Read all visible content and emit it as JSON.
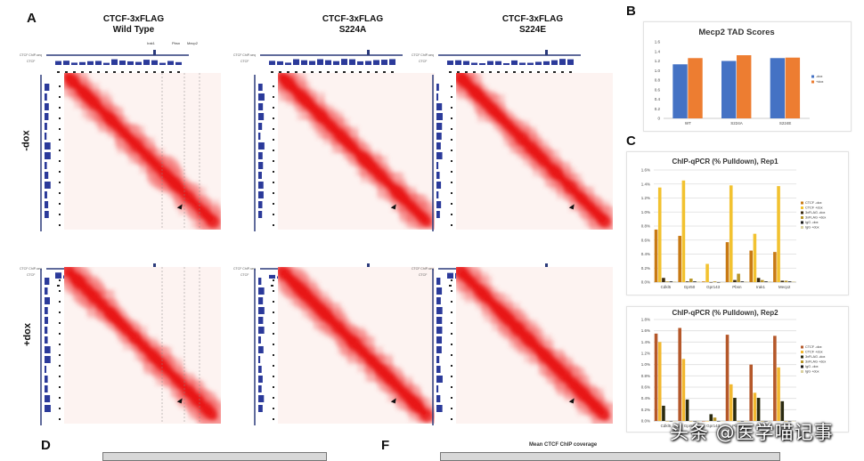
{
  "panels": {
    "A": {
      "letter": "A",
      "columns": [
        {
          "title_line1": "CTCF-3xFLAG",
          "title_line2": "Wild Type"
        },
        {
          "title_line1": "CTCF-3xFLAG",
          "title_line2": "S224A"
        },
        {
          "title_line1": "CTCF-3xFLAG",
          "title_line2": "S224E"
        }
      ],
      "rows": [
        {
          "label": "-dox"
        },
        {
          "label": "+dox"
        }
      ],
      "track_labels": {
        "top": "CTCF ChIP-seq",
        "bottom": "CTCF"
      },
      "wt_annotations": [
        "Irak1",
        "Pbsn",
        "Mecp2"
      ]
    },
    "B": {
      "letter": "B"
    },
    "C": {
      "letter": "C"
    },
    "D": {
      "letter": "D"
    },
    "F": {
      "letter": "F",
      "title": "Mean CTCF ChIP coverage"
    }
  },
  "watermark": "头条 @医学喵记事",
  "chart_data": [
    {
      "type": "bar",
      "title": "Mecp2 TAD Scores",
      "categories": [
        "WT",
        "S224A",
        "S224E"
      ],
      "series": [
        {
          "name": "-dox",
          "color": "#4472c4",
          "values": [
            1.13,
            1.2,
            1.26
          ]
        },
        {
          "name": "+dox",
          "color": "#ed7d31",
          "values": [
            1.26,
            1.32,
            1.27
          ]
        }
      ],
      "yticks": [
        "0",
        "0.2",
        "0.4",
        "0.6",
        "0.8",
        "1.0",
        "1.2",
        "1.4",
        "1.6"
      ],
      "ylim": [
        0,
        1.6
      ],
      "legend": "right",
      "xlabel": "",
      "ylabel": ""
    },
    {
      "type": "bar",
      "title": "ChIP-qPCR (% Pulldown), Rep1",
      "categories": [
        "Cdkl5",
        "Gpr50",
        "Gpr143",
        "Pbsn",
        "Irak1",
        "Mecp2"
      ],
      "series": [
        {
          "name": "CTCF -dox",
          "color": "#c87a14",
          "values": [
            0.75,
            0.66,
            0.01,
            0.57,
            0.45,
            0.43
          ]
        },
        {
          "name": "CTCF +dox",
          "color": "#f2c230",
          "values": [
            1.35,
            1.45,
            0.26,
            1.38,
            0.69,
            1.37
          ]
        },
        {
          "name": "3xFLAG -dox",
          "color": "#3a2a10",
          "values": [
            0.06,
            0.01,
            0.0,
            0.03,
            0.06,
            0.02
          ]
        },
        {
          "name": "3xFLAG +dox",
          "color": "#b8962a",
          "values": [
            0.01,
            0.05,
            0.01,
            0.12,
            0.03,
            0.02
          ]
        },
        {
          "name": "IgG -dox",
          "color": "#1a1a1a",
          "values": [
            0.01,
            0.01,
            0.0,
            0.01,
            0.01,
            0.01
          ]
        },
        {
          "name": "IgG +dox",
          "color": "#d9d0a0",
          "values": [
            0.01,
            0.01,
            0.0,
            0.01,
            0.01,
            0.01
          ]
        }
      ],
      "yticks": [
        "0.0%",
        "0.2%",
        "0.4%",
        "0.6%",
        "0.8%",
        "1.0%",
        "1.2%",
        "1.4%",
        "1.6%"
      ],
      "ylim": [
        0,
        1.6
      ],
      "legend": "right",
      "xlabel": "",
      "ylabel": ""
    },
    {
      "type": "bar",
      "title": "ChIP-qPCR (% Pulldown), Rep2",
      "categories": [
        "Cdkl5",
        "Gpr50",
        "Gpr143",
        "Pbsn",
        "Irak1",
        "Mecp2"
      ],
      "series": [
        {
          "name": "CTCF -dox",
          "color": "#b5582a",
          "values": [
            1.55,
            1.65,
            0.0,
            1.53,
            1.0,
            1.51
          ]
        },
        {
          "name": "CTCF +dox",
          "color": "#f2b830",
          "values": [
            1.4,
            1.1,
            0.0,
            0.65,
            0.5,
            0.95
          ]
        },
        {
          "name": "3xFLAG -dox",
          "color": "#2a2a10",
          "values": [
            0.27,
            0.38,
            0.12,
            0.41,
            0.41,
            0.35
          ]
        },
        {
          "name": "3xFLAG +dox",
          "color": "#b8962a",
          "values": [
            0.0,
            0.0,
            0.06,
            0.0,
            0.0,
            0.0
          ]
        },
        {
          "name": "IgG -dox",
          "color": "#1a1a1a",
          "values": [
            0.0,
            0.0,
            0.0,
            0.0,
            0.0,
            0.0
          ]
        },
        {
          "name": "IgG +dox",
          "color": "#d9d0a0",
          "values": [
            0.0,
            0.0,
            0.0,
            0.0,
            0.0,
            0.0
          ]
        }
      ],
      "yticks": [
        "0.0%",
        "0.2%",
        "0.4%",
        "0.6%",
        "0.8%",
        "1.0%",
        "1.2%",
        "1.4%",
        "1.6%",
        "1.8%"
      ],
      "ylim": [
        0,
        1.8
      ],
      "legend": "right",
      "xlabel": "",
      "ylabel": ""
    }
  ]
}
